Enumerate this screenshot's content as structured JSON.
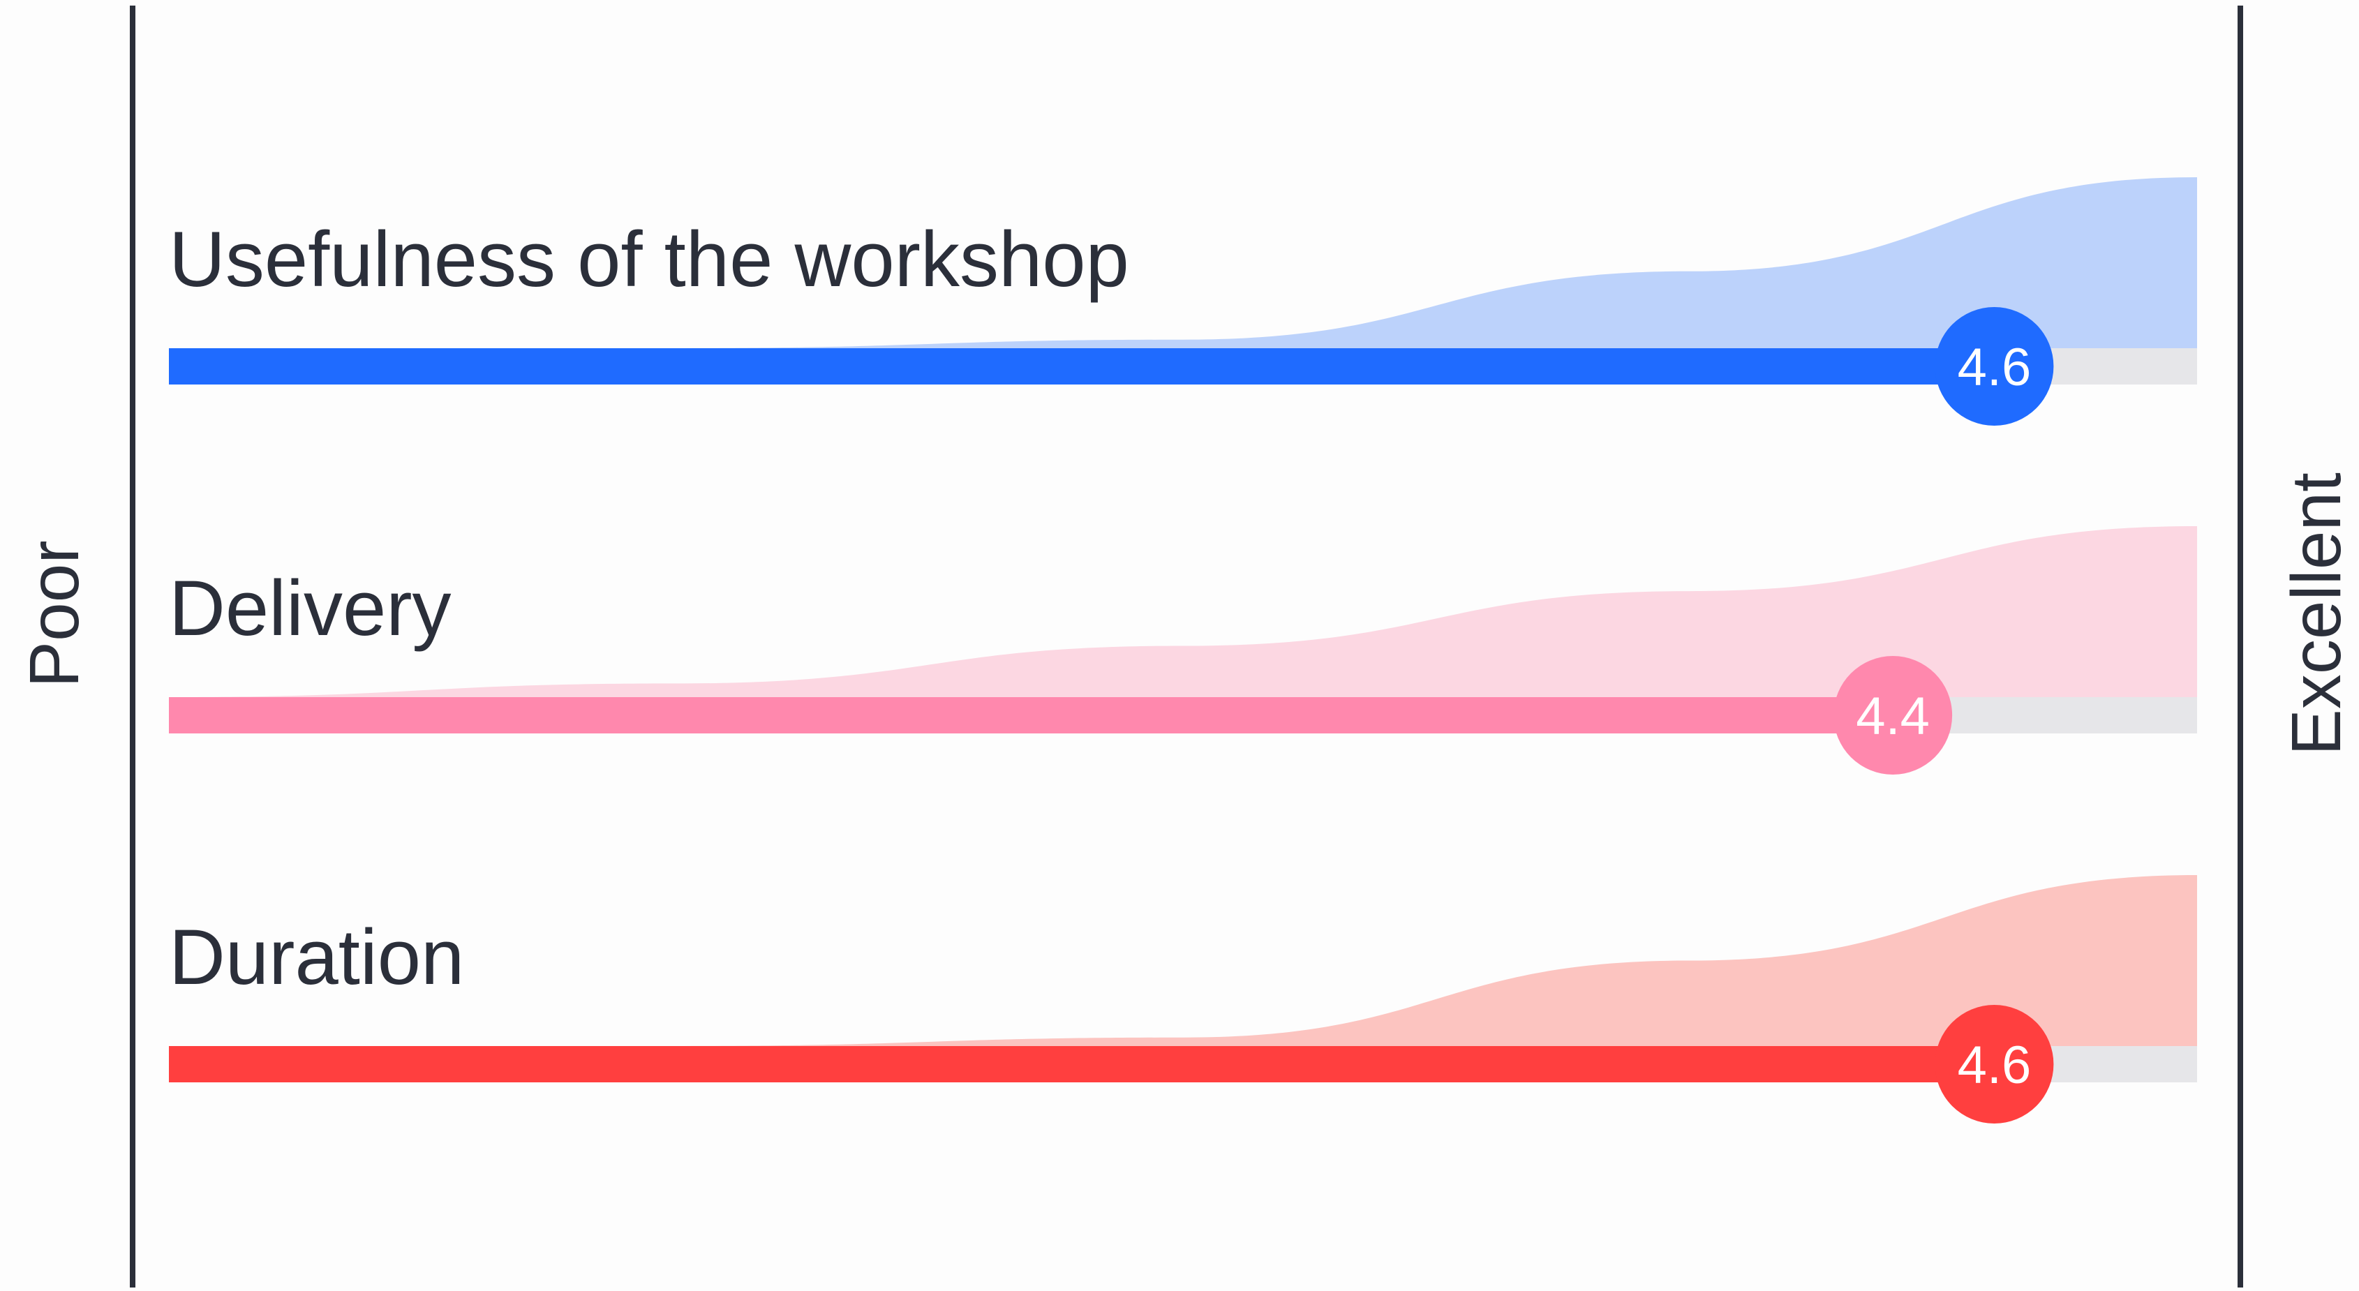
{
  "chart_data": {
    "type": "bar",
    "scale": {
      "min": 1,
      "max": 5,
      "min_label": "Poor",
      "max_label": "Excellent"
    },
    "rows": [
      {
        "label": "Usefulness of the workshop",
        "value": 4.6,
        "value_label": "4.6",
        "color": "#1f6bff",
        "area_color": "#bcd2fb",
        "distribution": [
          0,
          0,
          0.05,
          0.45,
          1.0
        ]
      },
      {
        "label": "Delivery",
        "value": 4.4,
        "value_label": "4.4",
        "color": "#ff88ad",
        "area_color": "#fcd7e2",
        "distribution": [
          0,
          0.08,
          0.3,
          0.62,
          1.0
        ]
      },
      {
        "label": "Duration",
        "value": 4.6,
        "value_label": "4.6",
        "color": "#ff3f3f",
        "area_color": "#fcc4c0",
        "distribution": [
          0,
          0,
          0.05,
          0.5,
          1.0
        ]
      }
    ],
    "colors": {
      "track": "#e6e6e9",
      "axis": "#2b2f3a",
      "text": "#2b2f3a",
      "value_text": "#ffffff",
      "background": "#fdfdfd"
    }
  }
}
